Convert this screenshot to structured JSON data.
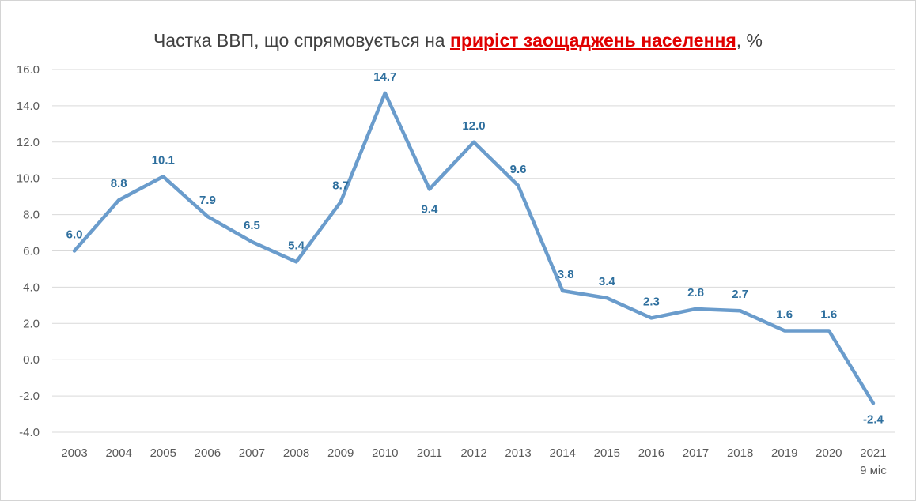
{
  "chart_data": {
    "type": "line",
    "title_parts": {
      "before": "Частка ВВП, що спрямовується на ",
      "highlight": "приріст заощаджень населення",
      "after": ", %"
    },
    "categories": [
      "2003",
      "2004",
      "2005",
      "2006",
      "2007",
      "2008",
      "2009",
      "2010",
      "2011",
      "2012",
      "2013",
      "2014",
      "2015",
      "2016",
      "2017",
      "2018",
      "2019",
      "2020",
      "2021"
    ],
    "category_sublabels": {
      "2021": "9 міс"
    },
    "series": [
      {
        "values": [
          6.0,
          8.8,
          10.1,
          7.9,
          6.5,
          5.4,
          8.7,
          14.7,
          9.4,
          12.0,
          9.6,
          3.8,
          3.4,
          2.3,
          2.8,
          2.7,
          1.6,
          1.6,
          -2.4
        ],
        "data_labels": [
          "6.0",
          "8.8",
          "10.1",
          "7.9",
          "6.5",
          "5.4",
          "8.7",
          "14.7",
          "9.4",
          "12.0",
          "9.6",
          "3.8",
          "3.4",
          "2.3",
          "2.8",
          "2.7",
          "1.6",
          "1.6",
          "-2.4"
        ],
        "color": "#6a9ccc"
      }
    ],
    "ylim": [
      -4.0,
      16.0
    ],
    "yticks": [
      "-4.0",
      "-2.0",
      "0.0",
      "2.0",
      "4.0",
      "6.0",
      "8.0",
      "10.0",
      "12.0",
      "14.0",
      "16.0"
    ],
    "grid": true,
    "legend": "none",
    "colors": {
      "highlight": "#e00000",
      "label": "#2e6f9e",
      "grid": "#d9d9d9"
    }
  }
}
